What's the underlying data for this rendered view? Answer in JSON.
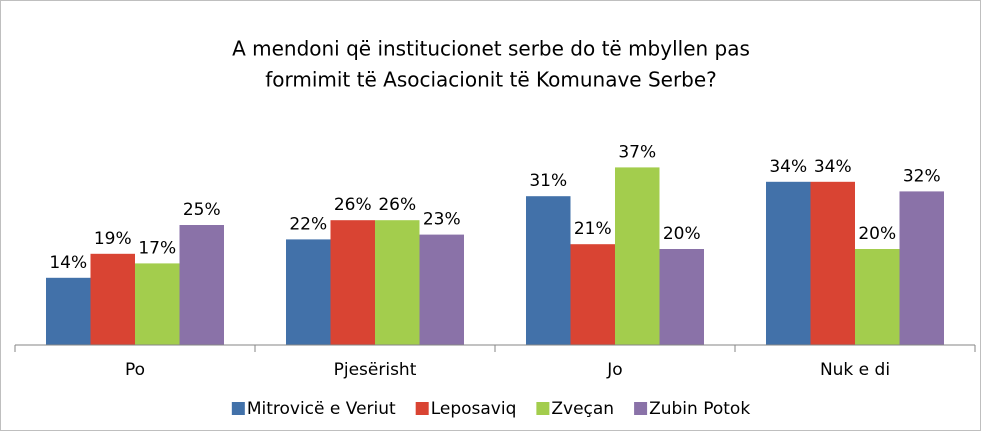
{
  "chart_data": {
    "type": "bar",
    "title": [
      "A mendoni që institucionet serbe do të mbyllen pas",
      "formimit të Asociacionit të Komunave Serbe?"
    ],
    "categories": [
      "Po",
      "Pjesërisht",
      "Jo",
      "Nuk e di"
    ],
    "series": [
      {
        "name": "Mitrovicë e Veriut",
        "color": "#4271a9",
        "values": [
          14,
          22,
          31,
          34
        ],
        "value_labels": [
          "14%",
          "22%",
          "31%",
          "34%"
        ]
      },
      {
        "name": "Leposaviq",
        "color": "#d94433",
        "values": [
          19,
          26,
          21,
          34
        ],
        "value_labels": [
          "19%",
          "26%",
          "21%",
          "34%"
        ]
      },
      {
        "name": "Zveçan",
        "color": "#a3cd4d",
        "values": [
          17,
          26,
          37,
          20
        ],
        "value_labels": [
          "17%",
          "26%",
          "37%",
          "20%"
        ]
      },
      {
        "name": "Zubin Potok",
        "color": "#8a72a8",
        "values": [
          25,
          23,
          20,
          32
        ],
        "value_labels": [
          "25%",
          "23%",
          "20%",
          "32%"
        ]
      }
    ],
    "legend": "bottom"
  }
}
